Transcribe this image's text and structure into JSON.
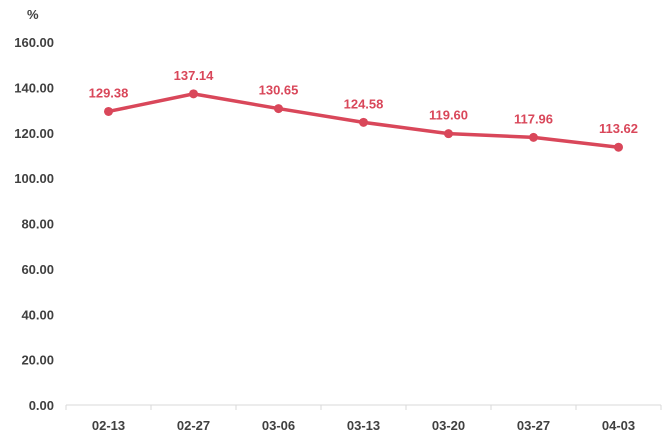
{
  "chart_data": {
    "type": "line",
    "title": "",
    "xlabel": "",
    "ylabel": "%",
    "categories": [
      "02-13",
      "02-27",
      "03-06",
      "03-13",
      "03-20",
      "03-27",
      "04-03"
    ],
    "series": [
      {
        "values": [
          129.38,
          137.14,
          130.65,
          124.58,
          119.6,
          117.96,
          113.62
        ],
        "labels": [
          "129.38",
          "137.14",
          "130.65",
          "124.58",
          "119.60",
          "117.96",
          "113.62"
        ],
        "color": "#d9475a"
      }
    ],
    "ylim": [
      0,
      160
    ],
    "yticks": [
      0,
      20,
      40,
      60,
      80,
      100,
      120,
      140,
      160
    ],
    "ytick_labels": [
      "0.00",
      "20.00",
      "40.00",
      "60.00",
      "80.00",
      "100.00",
      "120.00",
      "140.00",
      "160.00"
    ],
    "grid": false,
    "legend": "none",
    "axis_color": "#d9d9d9",
    "text_color": "#404040"
  }
}
